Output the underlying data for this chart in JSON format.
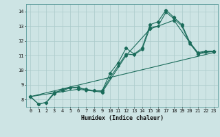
{
  "xlabel": "Humidex (Indice chaleur)",
  "bg_color": "#cde4e4",
  "grid_color": "#aacaca",
  "line_color": "#1a6b5a",
  "xlim": [
    -0.5,
    23.5
  ],
  "ylim": [
    7.5,
    14.5
  ],
  "yticks": [
    8,
    9,
    10,
    11,
    12,
    13,
    14
  ],
  "xticks": [
    0,
    1,
    2,
    3,
    4,
    5,
    6,
    7,
    8,
    9,
    10,
    11,
    12,
    13,
    14,
    15,
    16,
    17,
    18,
    19,
    20,
    21,
    22,
    23
  ],
  "line1": {
    "x": [
      0,
      1,
      2,
      3,
      4,
      5,
      6,
      7,
      8,
      9,
      10,
      11,
      12,
      13,
      14,
      15,
      16,
      17,
      18,
      19,
      20,
      21,
      22,
      23
    ],
    "y": [
      8.2,
      7.7,
      7.8,
      8.5,
      8.6,
      8.8,
      8.8,
      8.7,
      8.6,
      8.6,
      9.8,
      10.5,
      11.5,
      11.1,
      11.5,
      13.1,
      13.3,
      14.1,
      13.6,
      13.1,
      11.9,
      11.2,
      11.3,
      11.3
    ]
  },
  "line2": {
    "x": [
      0,
      1,
      2,
      3,
      4,
      5,
      6,
      7,
      8,
      9,
      10,
      11,
      12,
      13,
      14,
      15,
      16,
      17,
      18,
      19,
      20,
      21,
      22,
      23
    ],
    "y": [
      8.2,
      7.7,
      7.8,
      8.4,
      8.7,
      8.8,
      8.85,
      8.6,
      8.6,
      8.55,
      9.5,
      10.3,
      11.1,
      11.05,
      11.4,
      12.9,
      13.0,
      13.95,
      13.5,
      13.0,
      11.8,
      11.15,
      11.25,
      11.25
    ]
  },
  "line3": {
    "x": [
      0,
      3,
      6,
      9,
      12,
      15,
      18,
      21,
      23
    ],
    "y": [
      8.2,
      8.45,
      8.7,
      8.5,
      11.0,
      12.8,
      13.4,
      11.1,
      11.3
    ]
  },
  "line_straight": {
    "x": [
      0,
      23
    ],
    "y": [
      8.2,
      11.2
    ]
  }
}
